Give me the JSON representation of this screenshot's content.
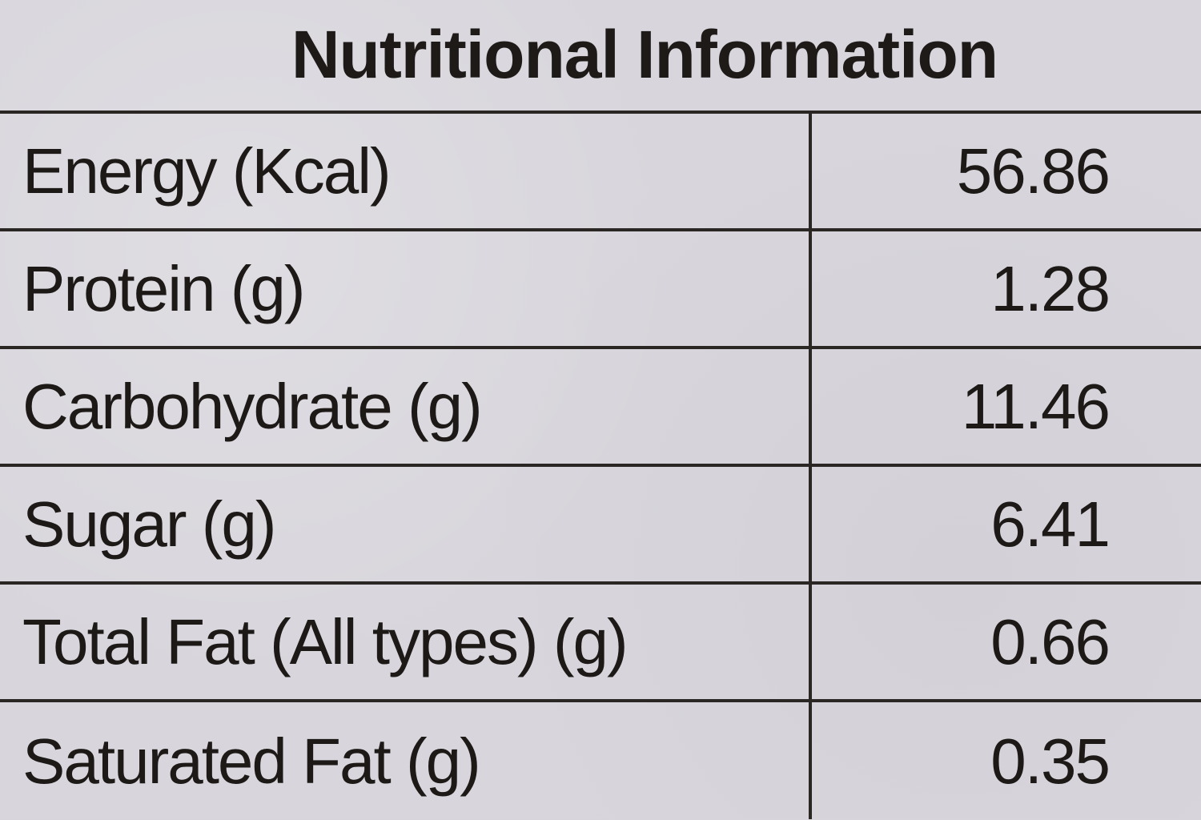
{
  "title": "Nutritional Information",
  "rows": [
    {
      "label": "Energy (Kcal)",
      "value": "56.86"
    },
    {
      "label": "Protein (g)",
      "value": "1.28"
    },
    {
      "label": "Carbohydrate (g)",
      "value": "11.46"
    },
    {
      "label": "Sugar (g)",
      "value": "6.41"
    },
    {
      "label": "Total Fat (All types) (g)",
      "value": "0.66"
    },
    {
      "label": "Saturated Fat (g)",
      "value": "0.35"
    }
  ],
  "colors": {
    "paper": "#d8d6dc",
    "ink": "#1c1917",
    "rule": "#2a2624"
  }
}
